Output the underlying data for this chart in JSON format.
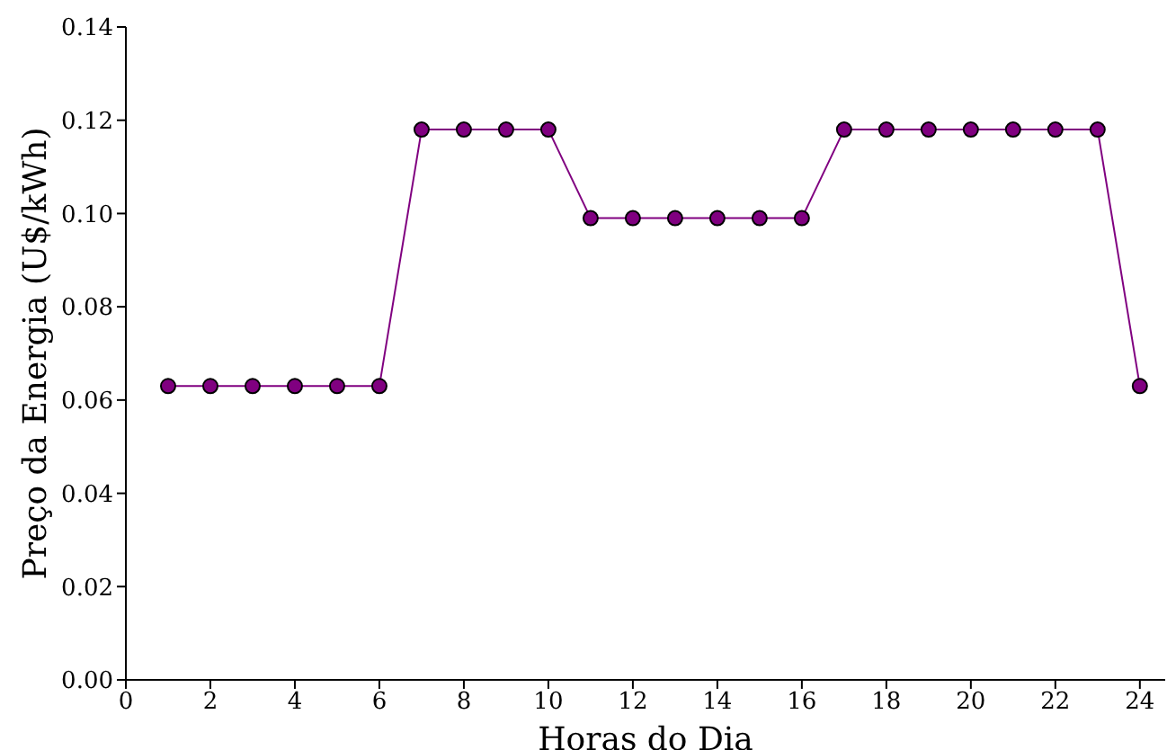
{
  "chart_data": {
    "type": "line",
    "xlabel": "Horas do Dia",
    "ylabel": "Preço da Energia (U$/kWh)",
    "x": [
      1,
      2,
      3,
      4,
      5,
      6,
      7,
      8,
      9,
      10,
      11,
      12,
      13,
      14,
      15,
      16,
      17,
      18,
      19,
      20,
      21,
      22,
      23,
      24
    ],
    "series": [
      {
        "color": "#800080",
        "values": [
          0.063,
          0.063,
          0.063,
          0.063,
          0.063,
          0.063,
          0.118,
          0.118,
          0.118,
          0.118,
          0.099,
          0.099,
          0.099,
          0.099,
          0.099,
          0.099,
          0.118,
          0.118,
          0.118,
          0.118,
          0.118,
          0.118,
          0.118,
          0.063
        ]
      }
    ],
    "xlim": [
      0,
      24.6
    ],
    "xticks": [
      0,
      2,
      4,
      6,
      8,
      10,
      12,
      14,
      16,
      18,
      20,
      22,
      24
    ],
    "ylim": [
      0,
      0.14
    ],
    "yticks": [
      {
        "value": 0,
        "label": "0.00"
      },
      {
        "value": 0.02,
        "label": "0.02"
      },
      {
        "value": 0.04,
        "label": "0.04"
      },
      {
        "value": 0.06,
        "label": "0.06"
      },
      {
        "value": 0.08,
        "label": "0.08"
      },
      {
        "value": 0.1,
        "label": "0.10"
      },
      {
        "value": 0.12,
        "label": "0.12"
      },
      {
        "value": 0.14,
        "label": "0.14"
      }
    ],
    "grid": false,
    "legend": false,
    "marker": "circle",
    "line_style": "solid"
  }
}
